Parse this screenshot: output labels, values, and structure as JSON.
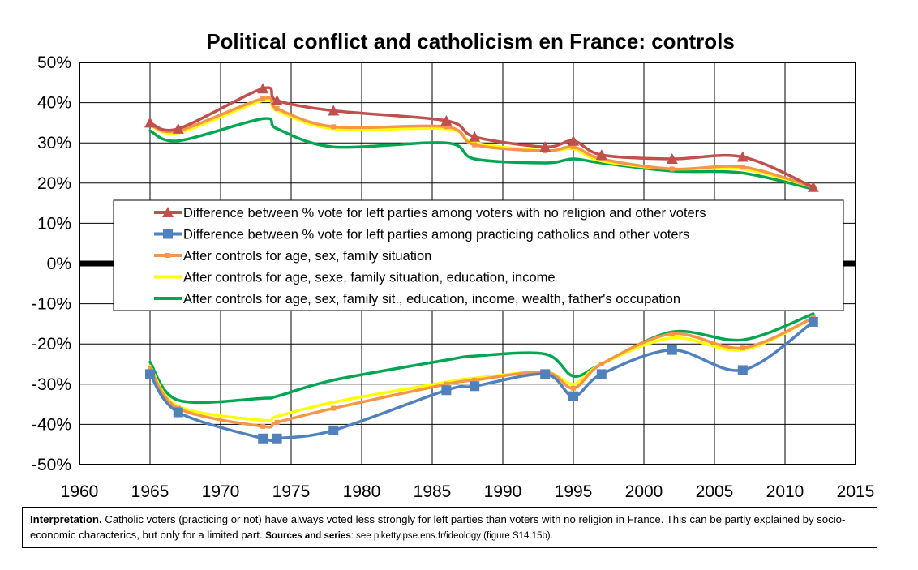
{
  "chart_data": {
    "type": "line",
    "title": "Political conflict and catholicism en France: controls",
    "xlabel": "",
    "ylabel": "",
    "xlim": [
      1960,
      2015
    ],
    "ylim": [
      -50,
      50
    ],
    "x_ticks": [
      "1960",
      "1965",
      "1970",
      "1975",
      "1980",
      "1985",
      "1990",
      "1995",
      "2000",
      "2005",
      "2010",
      "2015"
    ],
    "y_ticks": [
      "50%",
      "40%",
      "30%",
      "20%",
      "10%",
      "0%",
      "-10%",
      "-20%",
      "-30%",
      "-40%",
      "-50%"
    ],
    "grid": "horizontal and vertical",
    "legend_position": "center",
    "series": [
      {
        "name": "Difference between % vote for left parties among voters with no religion and other voters",
        "color": "#c0504d",
        "marker": "triangle",
        "points": [
          [
            1965,
            35
          ],
          [
            1967,
            33.5
          ],
          [
            1973,
            43.5
          ],
          [
            1974,
            40.5
          ],
          [
            1978,
            38
          ],
          [
            1986,
            35.5
          ],
          [
            1988,
            31.5
          ],
          [
            1993,
            29
          ],
          [
            1995,
            30.5
          ],
          [
            1997,
            27
          ],
          [
            2002,
            26
          ],
          [
            2007,
            26.5
          ],
          [
            2012,
            19
          ]
        ]
      },
      {
        "name": "Difference between % vote for left parties among practicing catholics and other voters",
        "color": "#4f81bd",
        "marker": "square",
        "points": [
          [
            1965,
            -27.5
          ],
          [
            1967,
            -37
          ],
          [
            1973,
            -43.5
          ],
          [
            1974,
            -43.5
          ],
          [
            1978,
            -41.5
          ],
          [
            1986,
            -31.5
          ],
          [
            1988,
            -30.5
          ],
          [
            1993,
            -27.5
          ],
          [
            1995,
            -33
          ],
          [
            1997,
            -27.5
          ],
          [
            2002,
            -21.5
          ],
          [
            2007,
            -26.5
          ],
          [
            2012,
            -14.5
          ]
        ]
      },
      {
        "name": "After controls for age, sex, family situation",
        "color": "#f79646",
        "marker": "dash",
        "points_top": [
          [
            1965,
            34.5
          ],
          [
            1967,
            33
          ],
          [
            1973,
            41
          ],
          [
            1974,
            38.5
          ],
          [
            1978,
            34
          ],
          [
            1986,
            34
          ],
          [
            1988,
            29.5
          ],
          [
            1993,
            28
          ],
          [
            1995,
            29
          ],
          [
            1997,
            26
          ],
          [
            2002,
            23.5
          ],
          [
            2007,
            24
          ],
          [
            2012,
            19
          ]
        ],
        "points_bottom": [
          [
            1965,
            -26
          ],
          [
            1967,
            -36
          ],
          [
            1973,
            -40.5
          ],
          [
            1974,
            -39.5
          ],
          [
            1978,
            -36
          ],
          [
            1986,
            -30
          ],
          [
            1988,
            -29
          ],
          [
            1993,
            -27
          ],
          [
            1995,
            -31
          ],
          [
            1997,
            -25
          ],
          [
            2002,
            -17.5
          ],
          [
            2007,
            -21
          ],
          [
            2012,
            -13.5
          ]
        ]
      },
      {
        "name": "After controls for age, sexe, family situation, education, income",
        "color": "#ffff00",
        "marker": "none",
        "points_top": [
          [
            1965,
            34.5
          ],
          [
            1967,
            32.5
          ],
          [
            1973,
            40.5
          ],
          [
            1974,
            38
          ],
          [
            1978,
            33.5
          ],
          [
            1986,
            33.5
          ],
          [
            1988,
            30
          ],
          [
            1993,
            28
          ],
          [
            1995,
            28.5
          ],
          [
            1997,
            25.5
          ],
          [
            2002,
            23.5
          ],
          [
            2007,
            23.5
          ],
          [
            2012,
            19
          ]
        ],
        "points_bottom": [
          [
            1965,
            -25.5
          ],
          [
            1967,
            -35.5
          ],
          [
            1973,
            -39
          ],
          [
            1974,
            -38
          ],
          [
            1978,
            -34.5
          ],
          [
            1986,
            -29.5
          ],
          [
            1988,
            -28.5
          ],
          [
            1993,
            -27
          ],
          [
            1995,
            -30
          ],
          [
            1997,
            -25
          ],
          [
            2002,
            -18.5
          ],
          [
            2007,
            -21.5
          ],
          [
            2012,
            -13.5
          ]
        ]
      },
      {
        "name": "After controls for age, sex, family sit., education, income, wealth, father's occupation",
        "color": "#00a651",
        "marker": "none",
        "points_top": [
          [
            1965,
            33
          ],
          [
            1967,
            30.5
          ],
          [
            1973,
            36
          ],
          [
            1974,
            33.5
          ],
          [
            1978,
            29
          ],
          [
            1986,
            30
          ],
          [
            1988,
            26
          ],
          [
            1993,
            25
          ],
          [
            1995,
            26
          ],
          [
            1997,
            25
          ],
          [
            2002,
            23
          ],
          [
            2007,
            22.5
          ],
          [
            2012,
            18.5
          ]
        ],
        "points_bottom": [
          [
            1965,
            -24.5
          ],
          [
            1967,
            -34
          ],
          [
            1973,
            -33.5
          ],
          [
            1974,
            -33
          ],
          [
            1978,
            -29
          ],
          [
            1986,
            -24
          ],
          [
            1988,
            -23
          ],
          [
            1993,
            -22.5
          ],
          [
            1995,
            -28
          ],
          [
            1997,
            -25
          ],
          [
            2002,
            -17
          ],
          [
            2007,
            -19
          ],
          [
            2012,
            -12.5
          ]
        ]
      }
    ]
  },
  "note": {
    "interp_label": "Interpretation.",
    "interp_text": " Catholic voters (practicing or not) have always voted less strongly for left parties than voters with no religion in France. This can be partly explained by socio-economic characterics, but only for a limited part. ",
    "sources_label": "Sources and series",
    "sources_text": ": see piketty.pse.ens.fr/ideology (figure S14.15b)."
  }
}
